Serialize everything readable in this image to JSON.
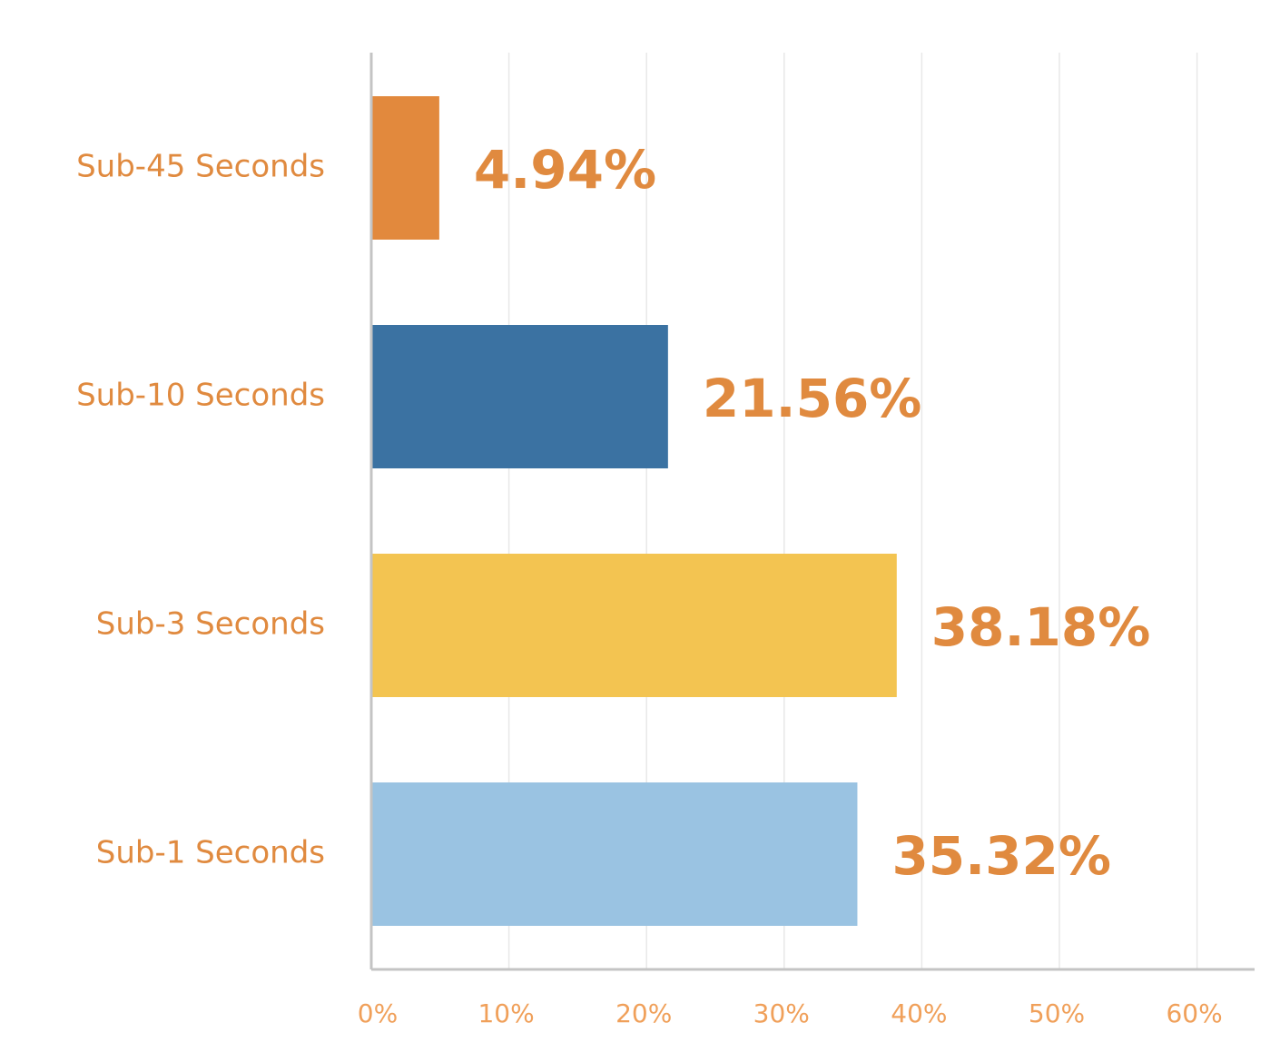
{
  "chart_data": {
    "type": "bar",
    "orientation": "horizontal",
    "categories": [
      "Sub-45 Seconds",
      "Sub-10 Seconds",
      "Sub-3 Seconds",
      "Sub-1 Seconds"
    ],
    "values": [
      4.94,
      21.56,
      38.18,
      35.32
    ],
    "value_labels": [
      "4.94%",
      "21.56%",
      "38.18%",
      "35.32%"
    ],
    "colors": [
      "#e2893d",
      "#3b72a2",
      "#f3c451",
      "#9ac3e2"
    ],
    "xlim": [
      0,
      64
    ],
    "ticks": [
      0,
      10,
      20,
      30,
      40,
      50,
      60
    ],
    "tick_labels": [
      "0%",
      "10%",
      "20%",
      "30%",
      "40%",
      "50%",
      "60%"
    ],
    "grid": true,
    "legend": "none",
    "title": "",
    "xlabel": "",
    "ylabel": "",
    "label_color": "#e08a3f",
    "tick_color": "#f0a05a"
  }
}
